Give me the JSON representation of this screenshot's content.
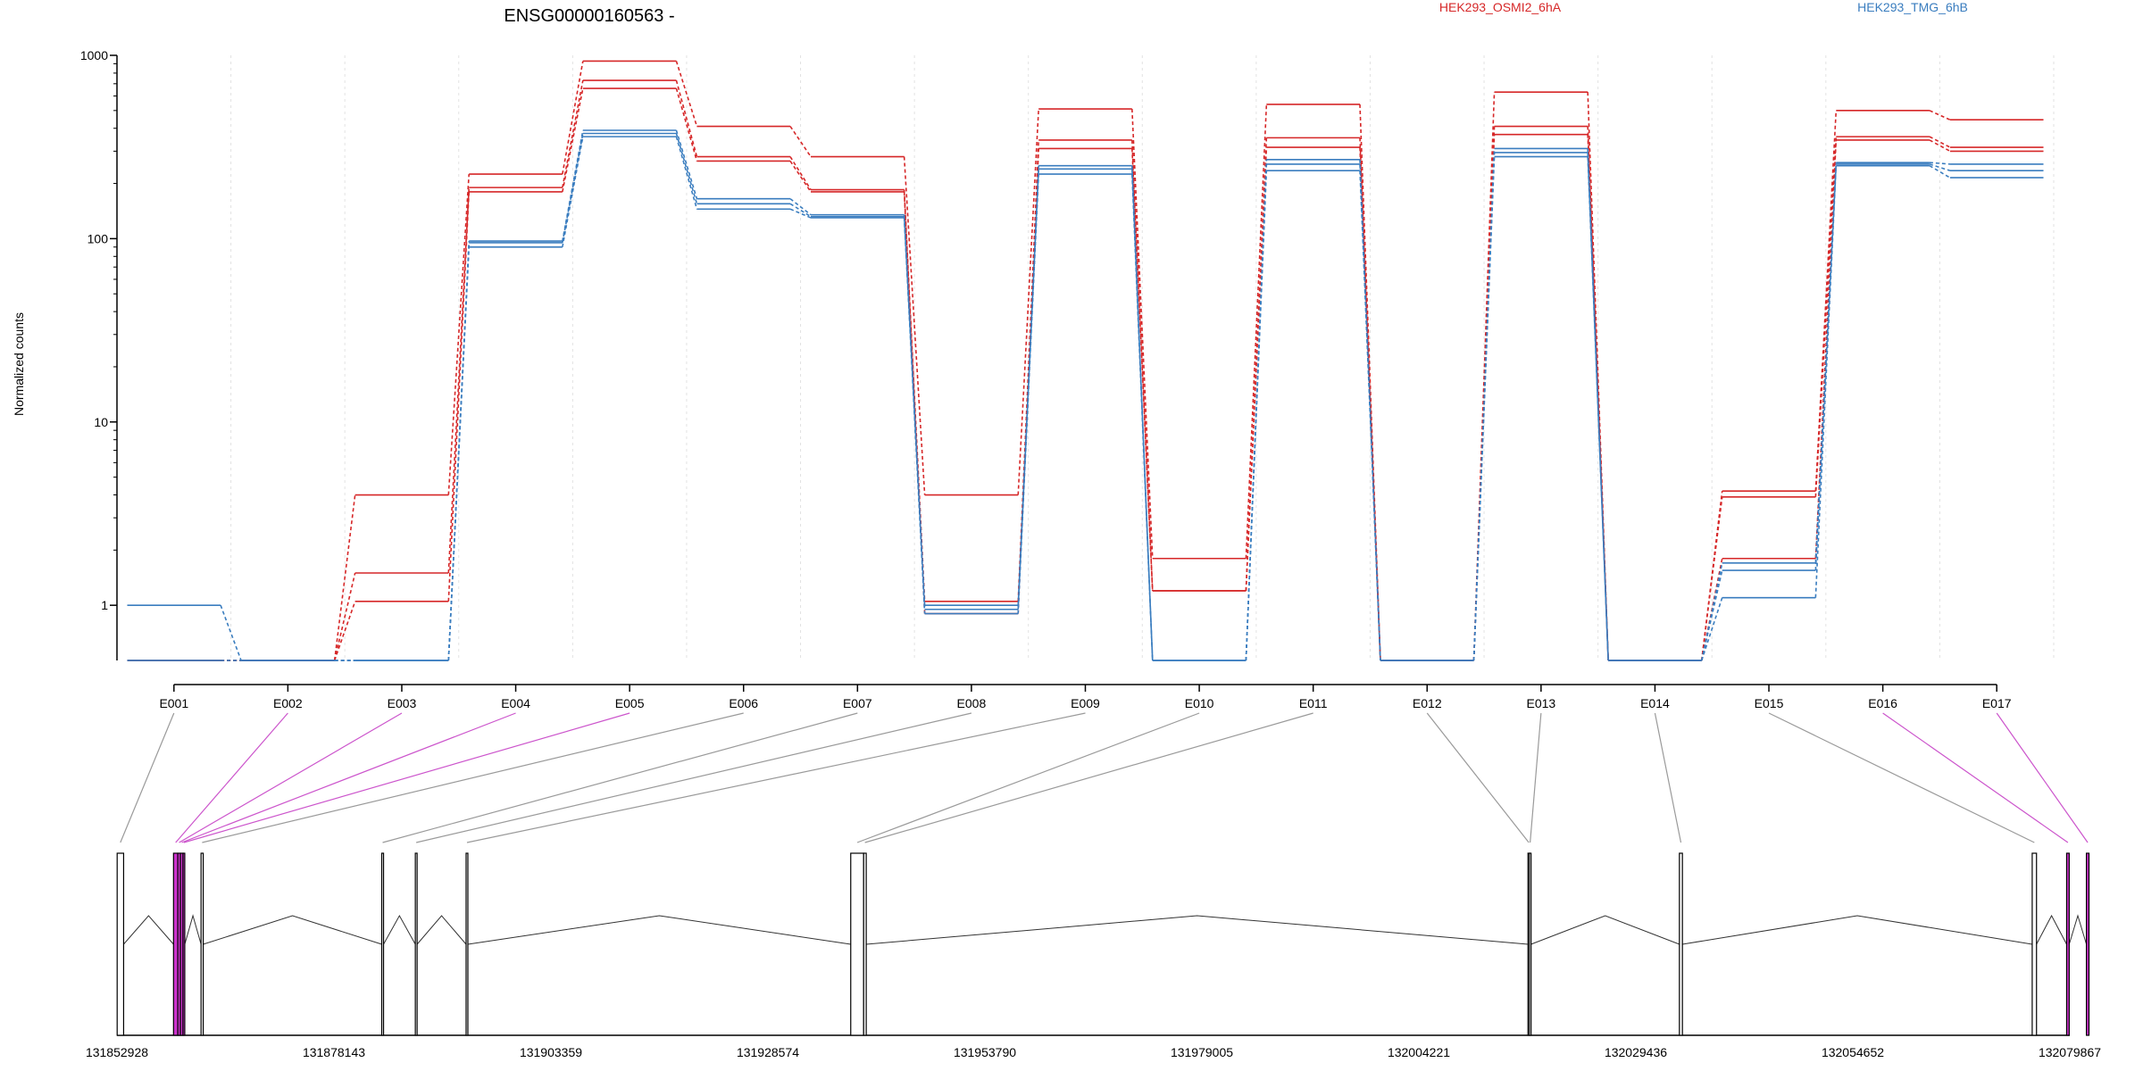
{
  "chart_data": {
    "type": "line",
    "title": "ENSG00000160563 -",
    "ylabel": "Normalized counts",
    "xlabel": "",
    "yscale": "log",
    "ylim": [
      0.5,
      1000
    ],
    "yticks": [
      1,
      10,
      100,
      1000
    ],
    "ytick_labels": [
      "1",
      "10",
      "100",
      "1000"
    ],
    "grid": true,
    "legend_placement": "top",
    "categories": [
      "E001",
      "E002",
      "E003",
      "E004",
      "E005",
      "E006",
      "E007",
      "E008",
      "E009",
      "E010",
      "E011",
      "E012",
      "E013",
      "E014",
      "E015",
      "E016",
      "E017"
    ],
    "series_groups": [
      {
        "name": "HEK293_OSMI2_6hA",
        "color": "#d62728",
        "series": [
          {
            "values": [
              0.5,
              0.5,
              4.0,
              225,
              930,
              410,
              280,
              4.0,
              510,
              1.8,
              540,
              0.5,
              630,
              0.5,
              4.2,
              500,
              445
            ]
          },
          {
            "values": [
              0.5,
              0.5,
              1.5,
              190,
              730,
              280,
              185,
              1.05,
              345,
              1.2,
              355,
              0.5,
              410,
              0.5,
              3.9,
              360,
              315
            ]
          },
          {
            "values": [
              0.5,
              0.5,
              1.05,
              180,
              660,
              265,
              180,
              0.9,
              310,
              1.2,
              315,
              0.5,
              370,
              0.5,
              1.8,
              345,
              300
            ]
          }
        ]
      },
      {
        "name": "HEK293_TMG_6hB",
        "color": "#3a7dbf",
        "series": [
          {
            "values": [
              1.0,
              0.5,
              0.5,
              97,
              390,
              165,
              135,
              1.0,
              250,
              0.5,
              270,
              0.5,
              310,
              0.5,
              1.7,
              260,
              255
            ]
          },
          {
            "values": [
              0.5,
              0.5,
              0.5,
              95,
              375,
              155,
              132,
              0.95,
              240,
              0.5,
              255,
              0.5,
              295,
              0.5,
              1.55,
              255,
              235
            ]
          },
          {
            "values": [
              0.5,
              0.5,
              0.5,
              90,
              360,
              145,
              130,
              0.9,
              225,
              0.5,
              235,
              0.5,
              280,
              0.5,
              1.1,
              250,
              215
            ]
          }
        ]
      }
    ],
    "gene_model": {
      "coordinate_labels": [
        "131852928",
        "131878143",
        "131903359",
        "131928574",
        "131953790",
        "131979005",
        "132004221",
        "132029436",
        "132054652",
        "132079867"
      ],
      "xlim": [
        131852928,
        132079867
      ],
      "exons": [
        {
          "id": "E001",
          "start": 131852950,
          "end": 131853700,
          "highlight": false
        },
        {
          "id": "E002",
          "start": 131859500,
          "end": 131860000,
          "highlight": true
        },
        {
          "id": "E003",
          "start": 131860000,
          "end": 131860300,
          "highlight": true
        },
        {
          "id": "E004",
          "start": 131860300,
          "end": 131860600,
          "highlight": true
        },
        {
          "id": "E005",
          "start": 131860600,
          "end": 131860800,
          "highlight": true
        },
        {
          "id": "E006",
          "start": 131862700,
          "end": 131862950,
          "highlight": false
        },
        {
          "id": "E007",
          "start": 131883700,
          "end": 131883900,
          "highlight": false
        },
        {
          "id": "E008",
          "start": 131887600,
          "end": 131887800,
          "highlight": false
        },
        {
          "id": "E009",
          "start": 131893500,
          "end": 131893700,
          "highlight": false
        },
        {
          "id": "E010",
          "start": 131938200,
          "end": 131939700,
          "highlight": false
        },
        {
          "id": "E011",
          "start": 131939700,
          "end": 131940000,
          "highlight": false
        },
        {
          "id": "E012",
          "start": 132016900,
          "end": 132017050,
          "highlight": false
        },
        {
          "id": "E013",
          "start": 132017050,
          "end": 132017200,
          "highlight": false
        },
        {
          "id": "E014",
          "start": 132034500,
          "end": 132034850,
          "highlight": false
        },
        {
          "id": "E015",
          "start": 132075500,
          "end": 132076000,
          "highlight": false
        },
        {
          "id": "E016",
          "start": 132079500,
          "end": 132079800,
          "highlight": true
        },
        {
          "id": "E017",
          "start": 132081800,
          "end": 132082100,
          "highlight": true
        }
      ]
    }
  }
}
